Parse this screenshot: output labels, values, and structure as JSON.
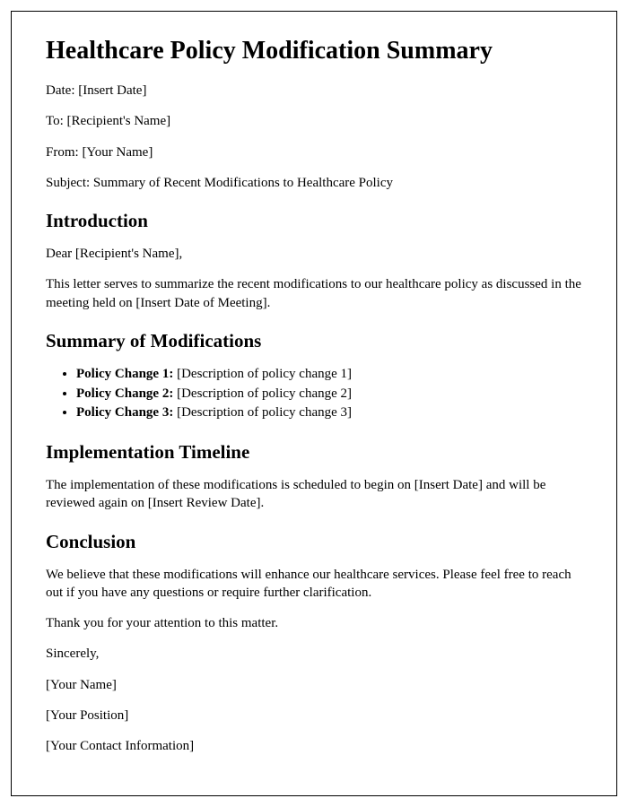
{
  "title": "Healthcare Policy Modification Summary",
  "header": {
    "date_label": "Date: ",
    "date_value": "[Insert Date]",
    "to_label": "To: ",
    "to_value": "[Recipient's Name]",
    "from_label": "From: ",
    "from_value": "[Your Name]",
    "subject_label": "Subject: ",
    "subject_value": "Summary of Recent Modifications to Healthcare Policy"
  },
  "introduction": {
    "heading": "Introduction",
    "salutation": "Dear [Recipient's Name],",
    "body": "This letter serves to summarize the recent modifications to our healthcare policy as discussed in the meeting held on [Insert Date of Meeting]."
  },
  "modifications": {
    "heading": "Summary of Modifications",
    "items": [
      {
        "label": "Policy Change 1:",
        "desc": " [Description of policy change 1]"
      },
      {
        "label": "Policy Change 2:",
        "desc": " [Description of policy change 2]"
      },
      {
        "label": "Policy Change 3:",
        "desc": " [Description of policy change 3]"
      }
    ]
  },
  "timeline": {
    "heading": "Implementation Timeline",
    "body": "The implementation of these modifications is scheduled to begin on [Insert Date] and will be reviewed again on [Insert Review Date]."
  },
  "conclusion": {
    "heading": "Conclusion",
    "body": "We believe that these modifications will enhance our healthcare services. Please feel free to reach out if you have any questions or require further clarification.",
    "thanks": "Thank you for your attention to this matter.",
    "closing": "Sincerely,",
    "name": "[Your Name]",
    "position": "[Your Position]",
    "contact": "[Your Contact Information]"
  },
  "style": {
    "font_family": "Times New Roman",
    "text_color": "#000000",
    "background_color": "#ffffff",
    "border_color": "#000000",
    "h1_fontsize": 28,
    "h2_fontsize": 21,
    "body_fontsize": 15
  }
}
